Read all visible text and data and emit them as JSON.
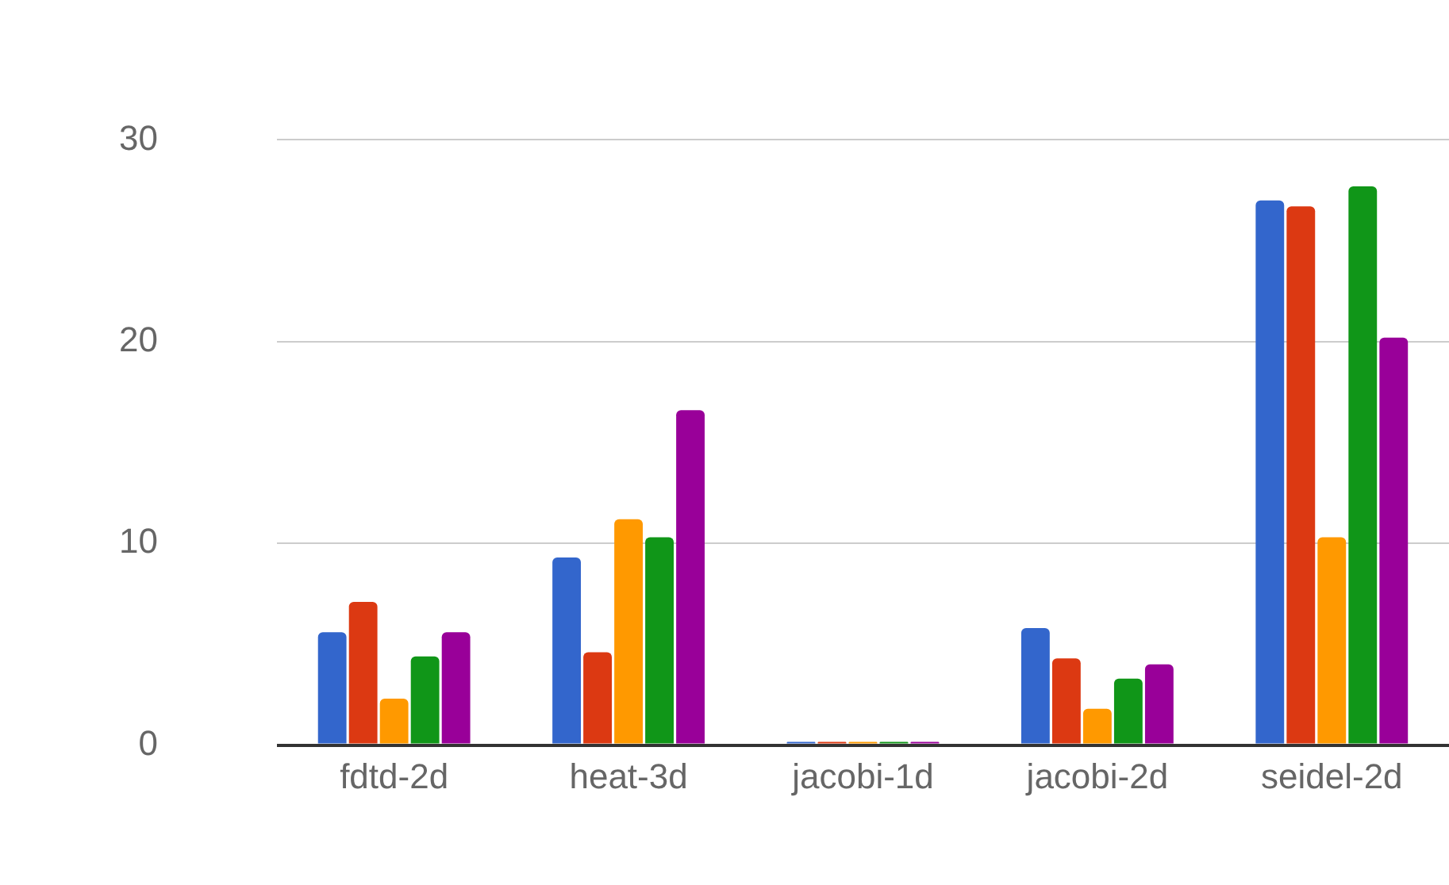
{
  "chart_data": {
    "type": "bar",
    "categories": [
      "fdtd-2d",
      "heat-3d",
      "jacobi-1d",
      "jacobi-2d",
      "seidel-2d"
    ],
    "series": [
      {
        "color": "#3366cc",
        "values": [
          5.6,
          9.3,
          0,
          5.8,
          27.0
        ]
      },
      {
        "color": "#dc3912",
        "values": [
          7.1,
          4.6,
          0,
          4.3,
          26.7
        ]
      },
      {
        "color": "#ff9900",
        "values": [
          2.3,
          11.2,
          0,
          1.8,
          10.3
        ]
      },
      {
        "color": "#109618",
        "values": [
          4.4,
          10.3,
          0,
          3.3,
          27.7
        ]
      },
      {
        "color": "#990099",
        "values": [
          5.6,
          16.6,
          0,
          4.0,
          20.2
        ]
      }
    ],
    "ylim": [
      0,
      30
    ],
    "yticks": [
      0,
      10,
      20,
      30
    ],
    "grid": "y",
    "legend": false
  }
}
